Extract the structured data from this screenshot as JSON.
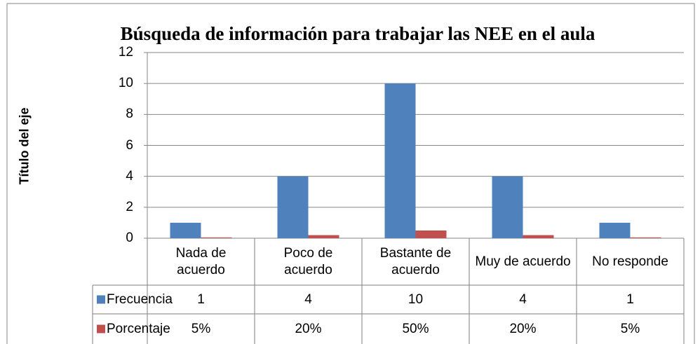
{
  "chart_data": {
    "type": "bar",
    "title": "Búsqueda de información para trabajar las NEE en el aula",
    "y_axis_label": "Título del eje",
    "categories": [
      "Nada de acuerdo",
      "Poco de acuerdo",
      "Bastante de acuerdo",
      "Muy de acuerdo",
      "No responde"
    ],
    "series": [
      {
        "name": "Frecuencia",
        "color": "#4f81bd",
        "values": [
          1,
          4,
          10,
          4,
          1
        ]
      },
      {
        "name": "Porcentaje",
        "color": "#c0504d",
        "values": [
          0.05,
          0.2,
          0.5,
          0.2,
          0.05
        ],
        "value_labels": [
          "5%",
          "20%",
          "50%",
          "20%",
          "5%"
        ]
      }
    ],
    "ylim": [
      0,
      12
    ],
    "yticks": [
      0,
      2,
      4,
      6,
      8,
      10,
      12
    ],
    "grid": true
  }
}
